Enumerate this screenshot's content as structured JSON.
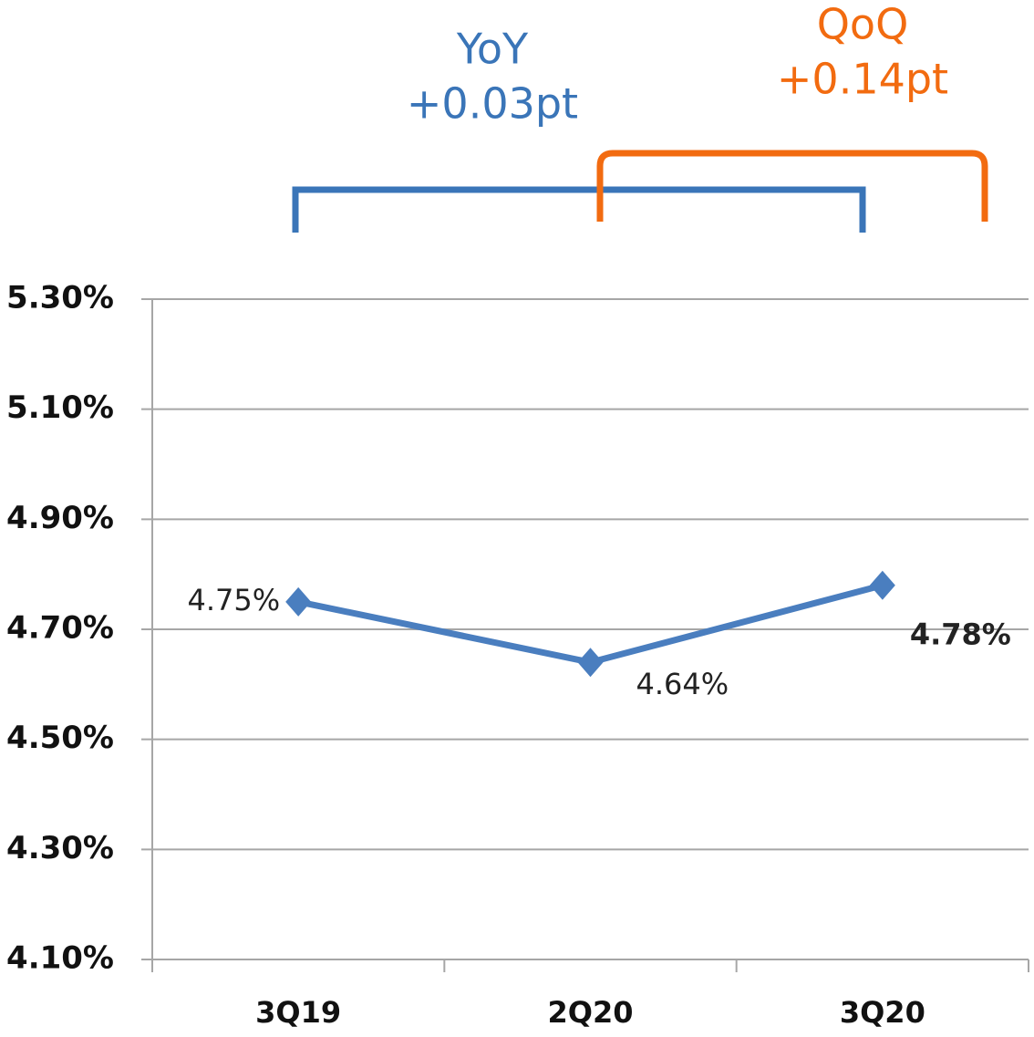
{
  "chart_data": {
    "type": "line",
    "categories": [
      "3Q19",
      "2Q20",
      "3Q20"
    ],
    "series": [
      {
        "color": "#4a7ebf",
        "values": [
          4.75,
          4.64,
          4.78
        ],
        "value_labels": [
          "4.75%",
          "4.64%",
          "4.78%"
        ]
      }
    ],
    "ylim": [
      4.1,
      5.3
    ],
    "yticks": [
      {
        "value": 4.1,
        "label": "4.10%"
      },
      {
        "value": 4.3,
        "label": "4.30%"
      },
      {
        "value": 4.5,
        "label": "4.50%"
      },
      {
        "value": 4.7,
        "label": "4.70%"
      },
      {
        "value": 4.9,
        "label": "4.90%"
      },
      {
        "value": 5.1,
        "label": "5.10%"
      },
      {
        "value": 5.3,
        "label": "5.30%"
      }
    ],
    "grid": true,
    "annotations": [
      {
        "label": "YoY",
        "value": "+0.03pt",
        "color": "#3a75b8"
      },
      {
        "label": "QoQ",
        "value": "+0.14pt",
        "color": "#f26b10"
      }
    ]
  }
}
